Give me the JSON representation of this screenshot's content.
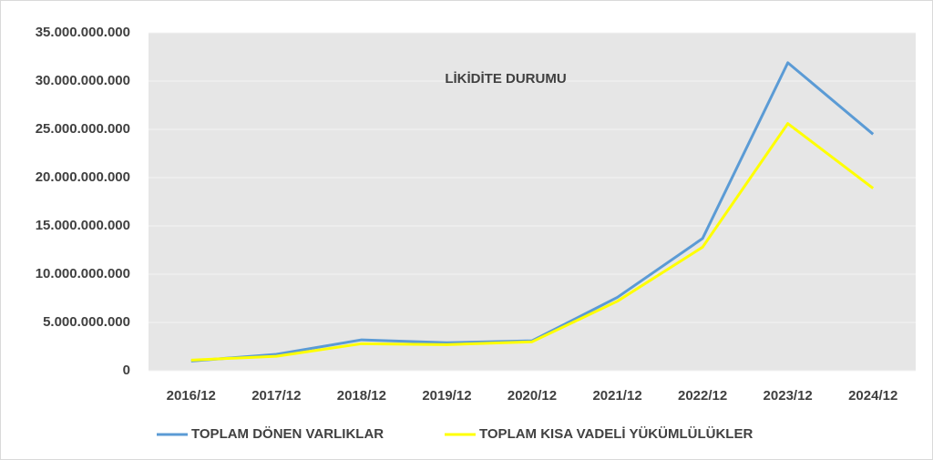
{
  "chart_data": {
    "type": "line",
    "title": "LİKİDİTE DURUMU",
    "categories": [
      "2016/12",
      "2017/12",
      "2018/12",
      "2019/12",
      "2020/12",
      "2021/12",
      "2022/12",
      "2023/12",
      "2024/12"
    ],
    "series": [
      {
        "name": "TOPLAM DÖNEN VARLIKLAR",
        "color": "#5b9bd5",
        "values": [
          1000000000,
          1700000000,
          3200000000,
          2900000000,
          3100000000,
          7600000000,
          13700000000,
          31900000000,
          24500000000
        ]
      },
      {
        "name": "TOPLAM KISA VADELİ YÜKÜMLÜLÜKLER",
        "color": "#ffff00",
        "values": [
          1100000000,
          1500000000,
          2800000000,
          2700000000,
          3000000000,
          7200000000,
          12800000000,
          25600000000,
          18900000000
        ]
      }
    ],
    "ylim": [
      0,
      35000000000
    ],
    "yticks": [
      0,
      {
        "value": 5000000000,
        "label": "5.000.000.000"
      },
      {
        "value": 10000000000,
        "label": "10.000.000.000"
      },
      {
        "value": 15000000000,
        "label": "15.000.000.000"
      },
      {
        "value": 20000000000,
        "label": "20.000.000.000"
      },
      {
        "value": 25000000000,
        "label": "25.000.000.000"
      },
      {
        "value": 30000000000,
        "label": "30.000.000.000"
      },
      {
        "value": 35000000000,
        "label": "35.000.000.000"
      }
    ],
    "grid": true,
    "legend": "bottom",
    "plot_background": "#e6e6e6"
  }
}
